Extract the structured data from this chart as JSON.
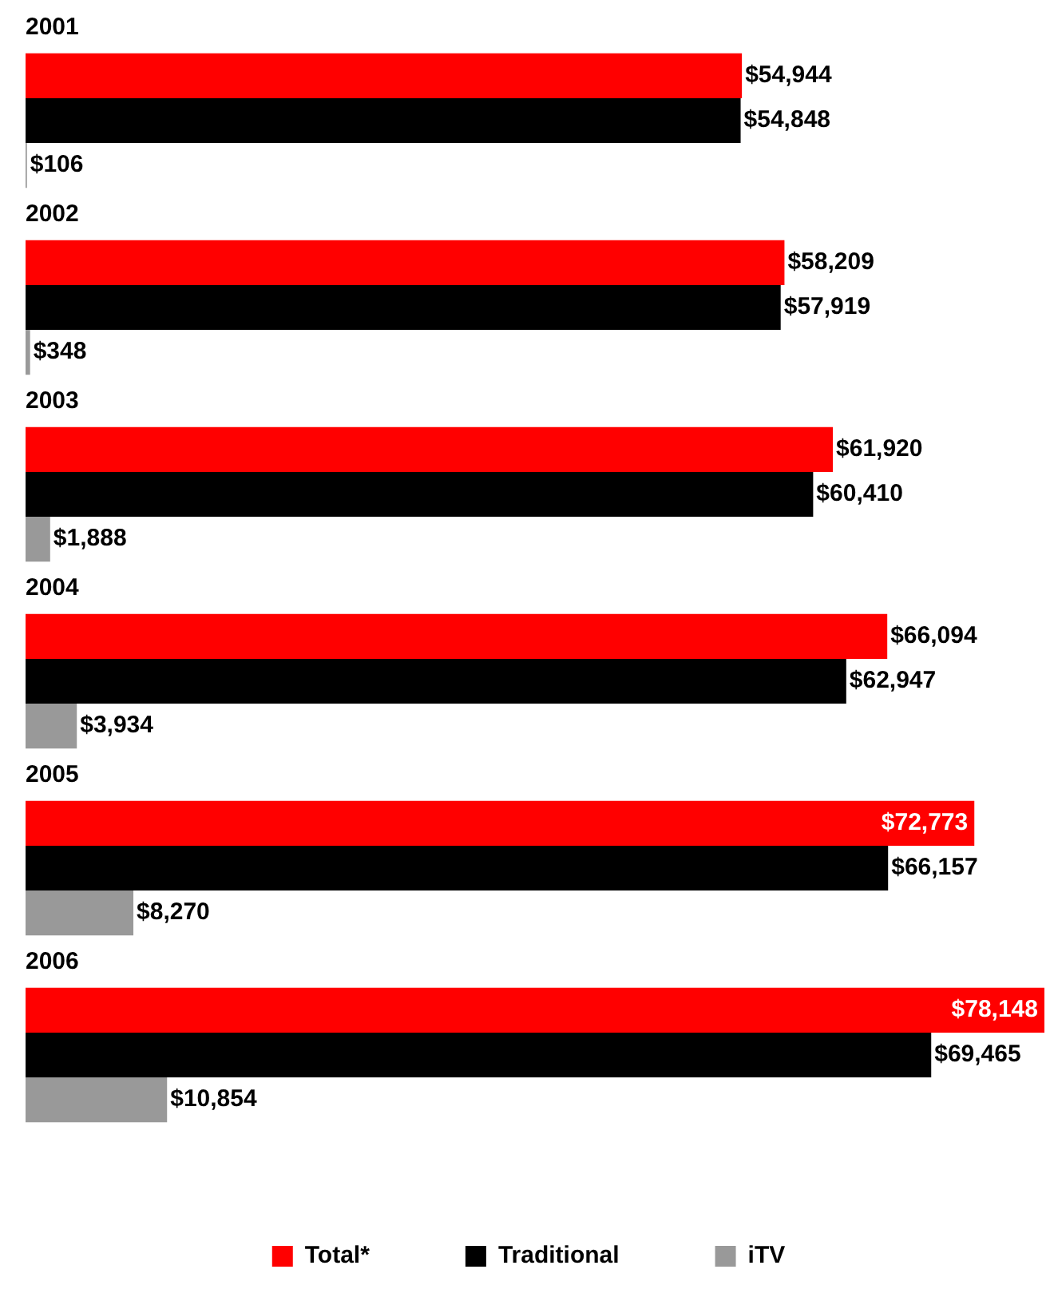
{
  "chart_data": {
    "type": "bar",
    "orientation": "horizontal",
    "tick_labels": "y",
    "legend": "bottom",
    "categories": [
      "2001",
      "2002",
      "2003",
      "2004",
      "2005",
      "2006"
    ],
    "series": [
      {
        "name": "Total*",
        "color": "#ff0000",
        "values": [
          54944,
          58209,
          61920,
          66094,
          72773,
          78148
        ],
        "value_labels": [
          "$54,944",
          "$58,209",
          "$61,920",
          "$66,094",
          "$72,773",
          "$78,148"
        ]
      },
      {
        "name": "Traditional",
        "color": "#000000",
        "values": [
          54848,
          57919,
          60410,
          62947,
          66157,
          69465
        ],
        "value_labels": [
          "$54,848",
          "$57,919",
          "$60,410",
          "$62,947",
          "$66,157",
          "$69,465"
        ]
      },
      {
        "name": "iTV",
        "color": "#999999",
        "values": [
          106,
          348,
          1888,
          3934,
          8270,
          10854
        ],
        "value_labels": [
          "$106",
          "$348",
          "$1,888",
          "$3,934",
          "$8,270",
          "$10,854"
        ]
      }
    ]
  }
}
